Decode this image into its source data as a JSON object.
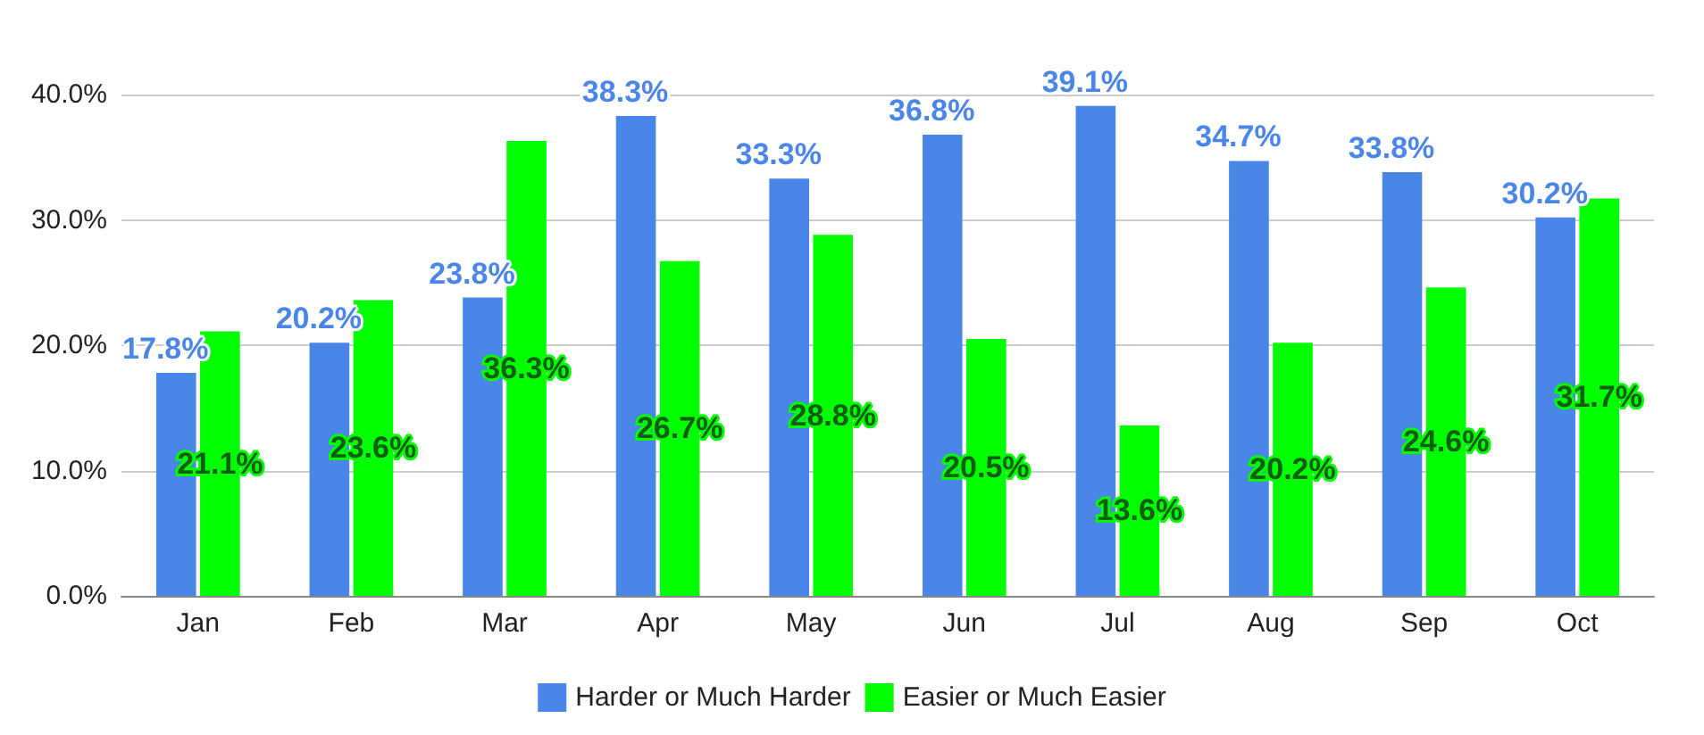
{
  "chart_data": {
    "type": "bar",
    "categories": [
      "Jan",
      "Feb",
      "Mar",
      "Apr",
      "May",
      "Jun",
      "Jul",
      "Aug",
      "Sep",
      "Oct"
    ],
    "series": [
      {
        "name": "Harder or Much Harder",
        "color": "#4a86e8",
        "values": [
          17.8,
          20.2,
          23.8,
          38.3,
          33.3,
          36.8,
          39.1,
          34.7,
          33.8,
          30.2
        ]
      },
      {
        "name": "Easier or Much Easier",
        "color": "#00ff00",
        "values": [
          21.1,
          23.6,
          36.3,
          26.7,
          28.8,
          20.5,
          13.6,
          20.2,
          24.6,
          31.7
        ]
      }
    ],
    "ylim": [
      0,
      40
    ],
    "yticks": [
      {
        "value": 0,
        "label": "0.0%"
      },
      {
        "value": 10,
        "label": "10.0%"
      },
      {
        "value": 20,
        "label": "20.0%"
      },
      {
        "value": 30,
        "label": "30.0%"
      },
      {
        "value": 40,
        "label": "40.0%"
      }
    ],
    "value_labels": [
      [
        "17.8%",
        "20.2%",
        "23.8%",
        "38.3%",
        "33.3%",
        "36.8%",
        "39.1%",
        "34.7%",
        "33.8%",
        "30.2%"
      ],
      [
        "21.1%",
        "23.6%",
        "36.3%",
        "26.7%",
        "28.8%",
        "20.5%",
        "13.6%",
        "20.2%",
        "24.6%",
        "31.7%"
      ]
    ],
    "grid": "y",
    "legend": "bottom"
  }
}
